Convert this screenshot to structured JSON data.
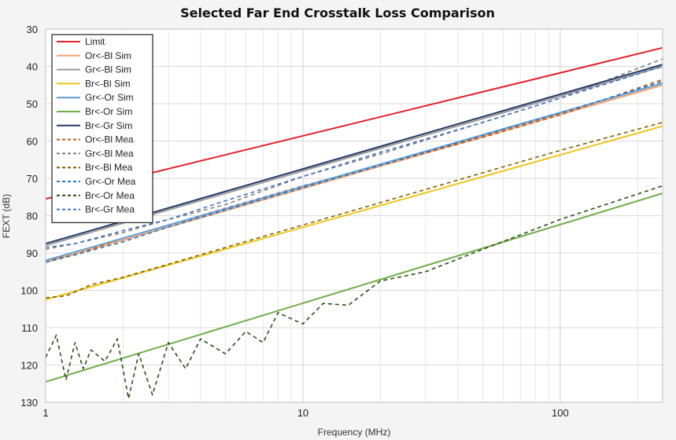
{
  "chart_data": {
    "type": "line",
    "title": "Selected Far End Crosstalk Loss Comparison",
    "xlabel": "Frequency (MHz)",
    "ylabel": "FEXT (dB)",
    "x_scale": "log",
    "xlim": [
      1,
      250
    ],
    "ylim": [
      30,
      130
    ],
    "y_inverted": true,
    "x_ticks": [
      1,
      10,
      100
    ],
    "x_tick_labels": [
      "1",
      "10",
      "100"
    ],
    "y_ticks": [
      30,
      40,
      50,
      60,
      70,
      80,
      90,
      100,
      110,
      120,
      130
    ],
    "y_tick_labels": [
      "30",
      "40",
      "50",
      "60",
      "70",
      "80",
      "90",
      "100",
      "110",
      "120",
      "130"
    ],
    "grid": true,
    "legend_position": "top-left",
    "series": [
      {
        "name": "Limit",
        "color": "#e3202b",
        "style": "solid",
        "x": [
          1,
          250
        ],
        "y": [
          75.5,
          35.0
        ]
      },
      {
        "name": "Or<-Bl Sim",
        "color": "#f0a070",
        "style": "solid",
        "x": [
          1,
          250
        ],
        "y": [
          92.5,
          45.0
        ]
      },
      {
        "name": "Gr<-Bl Sim",
        "color": "#9a9a9a",
        "style": "solid",
        "x": [
          1,
          250
        ],
        "y": [
          88.0,
          40.0
        ]
      },
      {
        "name": "Br<-Bl Sim",
        "color": "#f0c419",
        "style": "solid",
        "x": [
          1,
          250
        ],
        "y": [
          102.5,
          56.0
        ]
      },
      {
        "name": "Gr<-Or Sim",
        "color": "#5b9bd5",
        "style": "solid",
        "x": [
          1,
          250
        ],
        "y": [
          92.0,
          44.5
        ]
      },
      {
        "name": "Br<-Or Sim",
        "color": "#70ad47",
        "style": "solid",
        "x": [
          1,
          250
        ],
        "y": [
          124.5,
          74.0
        ]
      },
      {
        "name": "Br<-Gr Sim",
        "color": "#1f3864",
        "style": "solid",
        "x": [
          1,
          250
        ],
        "y": [
          87.5,
          39.5
        ]
      },
      {
        "name": "Or<-Bl Mea",
        "color": "#c55a11",
        "style": "dashed",
        "x": [
          1.0,
          1.3,
          2,
          3,
          5,
          10,
          20,
          50,
          100,
          250
        ],
        "y": [
          92.0,
          90.5,
          86.0,
          82.5,
          78.0,
          72.0,
          66.5,
          59.0,
          53.0,
          43.5
        ]
      },
      {
        "name": "Gr<-Bl Mea",
        "color": "#7f7f7f",
        "style": "dashed",
        "x": [
          1.0,
          1.3,
          2,
          3,
          5,
          10,
          20,
          50,
          100,
          250
        ],
        "y": [
          89.0,
          87.5,
          84.5,
          81.0,
          77.0,
          69.5,
          63.5,
          55.0,
          48.5,
          38.0
        ]
      },
      {
        "name": "Br<-Bl Mea",
        "color": "#806000",
        "style": "dashed",
        "x": [
          1.0,
          1.2,
          1.5,
          2,
          3,
          5,
          10,
          20,
          50,
          100,
          250
        ],
        "y": [
          102.0,
          101.5,
          98.5,
          96.5,
          93.0,
          88.5,
          82.5,
          76.5,
          68.5,
          62.5,
          55.0
        ]
      },
      {
        "name": "Gr<-Or Mea",
        "color": "#2e75b6",
        "style": "dashed",
        "x": [
          1.0,
          1.3,
          2,
          3,
          5,
          10,
          20,
          50,
          100,
          250
        ],
        "y": [
          92.5,
          90.5,
          87.0,
          83.0,
          78.5,
          72.5,
          66.5,
          58.5,
          52.5,
          44.0
        ]
      },
      {
        "name": "Br<-Or Mea",
        "color": "#2a4d14",
        "style": "dashed",
        "x": [
          1.0,
          1.1,
          1.2,
          1.3,
          1.4,
          1.5,
          1.7,
          1.9,
          2.1,
          2.3,
          2.6,
          3.0,
          3.5,
          4.0,
          5.0,
          6.0,
          7.0,
          8.0,
          10,
          12,
          15,
          20,
          30,
          50,
          100,
          250
        ],
        "y": [
          118.0,
          112.0,
          124.0,
          114.0,
          121.0,
          116.0,
          119.0,
          113.0,
          129.0,
          117.0,
          128.0,
          114.0,
          121.0,
          113.0,
          117.0,
          111.0,
          114.0,
          106.0,
          109.0,
          103.5,
          104.0,
          97.5,
          95.0,
          89.0,
          81.0,
          72.0
        ]
      },
      {
        "name": "Br<-Gr Mea",
        "color": "#4472c4",
        "style": "dashed",
        "x": [
          1.0,
          1.3,
          2,
          3,
          5,
          10,
          20,
          50,
          100,
          250
        ],
        "y": [
          88.5,
          87.5,
          84.0,
          81.0,
          76.0,
          69.5,
          63.0,
          55.0,
          48.5,
          40.0
        ]
      }
    ]
  }
}
